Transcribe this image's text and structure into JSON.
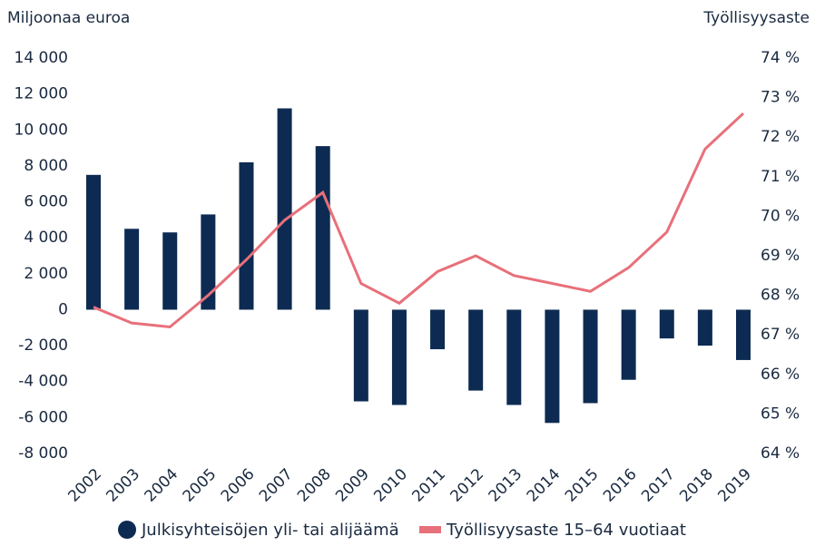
{
  "chart_data": {
    "type": "bar_line",
    "y_label": "Miljoonaa euroa",
    "y2_label": "Työllisyysaste",
    "categories": [
      "2002",
      "2003",
      "2004",
      "2005",
      "2006",
      "2007",
      "2008",
      "2009",
      "2010",
      "2011",
      "2012",
      "2013",
      "2014",
      "2015",
      "2016",
      "2017",
      "2018",
      "2019"
    ],
    "series": [
      {
        "name": "Julkisyhteisöjen yli- tai alijäämä",
        "type": "bar",
        "color": "#0d2b52",
        "values": [
          7500,
          4500,
          4300,
          5300,
          8200,
          11200,
          9100,
          -5100,
          -5300,
          -2200,
          -4500,
          -5300,
          -6300,
          -5200,
          -3900,
          -1600,
          -2000,
          -2800
        ]
      },
      {
        "name": "Työllisyysaste 15–64 vuotiaat",
        "type": "line",
        "axis": "y2",
        "color": "#e8707a",
        "values": [
          67.7,
          67.3,
          67.2,
          68.0,
          68.9,
          69.9,
          70.6,
          68.3,
          67.8,
          68.6,
          69.0,
          68.5,
          68.3,
          68.1,
          68.7,
          69.6,
          71.7,
          72.6
        ]
      }
    ],
    "ylim": [
      -8000,
      14000
    ],
    "yticks": [
      {
        "value": -8000,
        "label": "-8 000"
      },
      {
        "value": -6000,
        "label": "-6 000"
      },
      {
        "value": -4000,
        "label": "-4 000"
      },
      {
        "value": -2000,
        "label": "-2 000"
      },
      0,
      {
        "value": 2000,
        "label": "2 000"
      },
      {
        "value": 4000,
        "label": "4 000"
      },
      {
        "value": 6000,
        "label": "6 000"
      },
      {
        "value": 8000,
        "label": "8 000"
      },
      {
        "value": 10000,
        "label": "10 000"
      },
      {
        "value": 12000,
        "label": "12 000"
      },
      {
        "value": 14000,
        "label": "14 000"
      }
    ],
    "y2lim": [
      64,
      74
    ],
    "y2ticks": [
      {
        "value": 64,
        "label": "64 %"
      },
      {
        "value": 65,
        "label": "65 %"
      },
      {
        "value": 66,
        "label": "66 %"
      },
      {
        "value": 67,
        "label": "67 %"
      },
      {
        "value": 68,
        "label": "68 %"
      },
      {
        "value": 69,
        "label": "69 %"
      },
      {
        "value": 70,
        "label": "70 %"
      },
      {
        "value": 71,
        "label": "71 %"
      },
      {
        "value": 72,
        "label": "72 %"
      },
      {
        "value": 73,
        "label": "73 %"
      },
      {
        "value": 74,
        "label": "74 %"
      }
    ],
    "grid": false,
    "legend": "bottom"
  }
}
